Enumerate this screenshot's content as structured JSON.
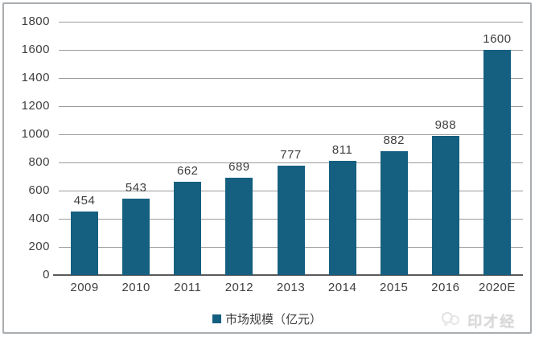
{
  "chart_data": {
    "type": "bar",
    "title": "",
    "xlabel": "",
    "ylabel": "",
    "categories": [
      "2009",
      "2010",
      "2011",
      "2012",
      "2013",
      "2014",
      "2015",
      "2016",
      "2020E"
    ],
    "values": [
      454,
      543,
      662,
      689,
      777,
      811,
      882,
      988,
      1600
    ],
    "ylim": [
      0,
      1800
    ],
    "ytick_step": 200,
    "grid": "horizontal-only",
    "bar_color": "#155f80",
    "legend": {
      "position": "bottom-center",
      "marker": "square",
      "label": "市场规模（亿元）"
    }
  },
  "watermark": {
    "text": "印才经",
    "logo": "cloud-logo-icon"
  },
  "colors": {
    "bar": "#155f80",
    "gridline": "#9b9b9b",
    "axis_line": "#5a5a5a",
    "text": "#3f3f3f",
    "frame_border": "#a9adb0",
    "watermark_text": "#d7d7d7"
  }
}
